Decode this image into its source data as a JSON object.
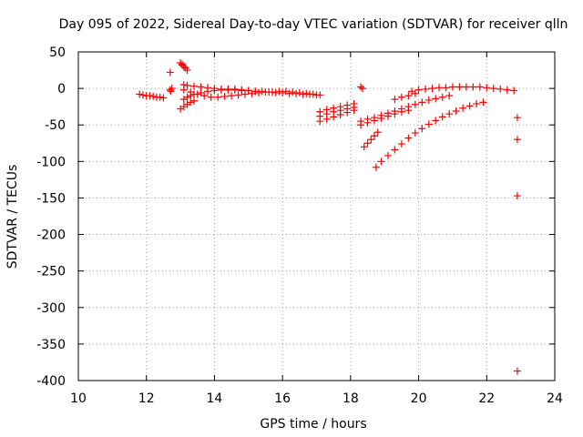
{
  "chart_data": {
    "type": "scatter",
    "title": "Day 095 of 2022, Sidereal Day-to-day VTEC variation (SDTVAR) for receiver qlln",
    "xlabel": "GPS time / hours",
    "ylabel": "SDTVAR / TECUs",
    "xlim": [
      10,
      24
    ],
    "ylim": [
      -400,
      50
    ],
    "xticks": [
      10,
      12,
      14,
      16,
      18,
      20,
      22,
      24
    ],
    "yticks": [
      50,
      0,
      -50,
      -100,
      -150,
      -200,
      -250,
      -300,
      -350,
      -400
    ],
    "grid": true,
    "marker": "plus",
    "color": "#ff0000",
    "series": [
      {
        "x": [
          11.8,
          11.9,
          12.0,
          12.1,
          12.2,
          12.3,
          12.4,
          12.5,
          12.7,
          12.75,
          12.7,
          12.72,
          13.0,
          13.05,
          13.1,
          13.15,
          13.2,
          13.05,
          13.1,
          13.0,
          13.1,
          13.2,
          13.3,
          13.4,
          13.1,
          13.2,
          13.4,
          13.6,
          13.8,
          14.0,
          14.2,
          14.4,
          14.6,
          14.8,
          15.0,
          15.2,
          15.4,
          15.6,
          15.8,
          16.0,
          16.2,
          16.4,
          16.6,
          16.8,
          17.0,
          13.1,
          13.3,
          13.5,
          13.7,
          13.9,
          14.1,
          14.3,
          14.5,
          14.7,
          14.9,
          15.1,
          15.3,
          15.5,
          15.7,
          15.9,
          16.1,
          16.3,
          16.5,
          16.7,
          16.9,
          17.1,
          13.1,
          13.2,
          13.3,
          13.4,
          13.6,
          13.8,
          14.0,
          14.2,
          14.4,
          14.6,
          14.8,
          15.0,
          15.2,
          17.1,
          17.3,
          17.5,
          17.7,
          17.9,
          18.1,
          17.1,
          17.3,
          17.5,
          17.7,
          17.9,
          18.1,
          17.1,
          17.3,
          17.5,
          17.7,
          17.9,
          18.1,
          18.3,
          18.35,
          18.3,
          18.5,
          18.7,
          18.9,
          19.1,
          19.3,
          19.5,
          19.7,
          19.9,
          20.1,
          20.3,
          20.5,
          20.7,
          20.9,
          18.3,
          18.5,
          18.7,
          18.9,
          19.1,
          19.3,
          19.5,
          19.7,
          18.4,
          18.5,
          18.6,
          18.7,
          18.8,
          19.3,
          19.5,
          19.7,
          19.9,
          19.8,
          20.0,
          20.2,
          20.4,
          20.6,
          20.8,
          21.0,
          21.2,
          21.4,
          21.6,
          21.8,
          22.0,
          22.2,
          22.4,
          22.6,
          22.8,
          18.75,
          18.9,
          19.1,
          19.3,
          19.5,
          19.7,
          19.9,
          20.1,
          20.3,
          20.5,
          20.7,
          20.9,
          21.1,
          21.3,
          21.5,
          21.7,
          21.9,
          22.9,
          22.9,
          22.9,
          22.9
        ],
        "y": [
          -8,
          -9,
          -10,
          -10,
          -11,
          -12,
          -12,
          -13,
          22,
          0,
          -2,
          -4,
          35,
          33,
          30,
          28,
          25,
          32,
          30,
          -28,
          -25,
          -22,
          -19,
          -17,
          5,
          4,
          3,
          2,
          1,
          0,
          -1,
          -2,
          -2,
          -3,
          -3,
          -4,
          -4,
          -5,
          -6,
          -6,
          -7,
          -7,
          -8,
          -8,
          -9,
          -2,
          -5,
          -8,
          -10,
          -12,
          -12,
          -11,
          -10,
          -9,
          -8,
          -7,
          -6,
          -5,
          -5,
          -4,
          -4,
          -5,
          -6,
          -7,
          -8,
          -9,
          -15,
          -12,
          -10,
          -8,
          -6,
          -4,
          -3,
          -2,
          -1,
          -1,
          -2,
          -3,
          -4,
          -45,
          -42,
          -39,
          -36,
          -33,
          -30,
          -38,
          -35,
          -32,
          -30,
          -28,
          -26,
          -32,
          -29,
          -27,
          -25,
          -23,
          -21,
          2,
          0,
          -45,
          -42,
          -40,
          -37,
          -34,
          -31,
          -28,
          -25,
          -22,
          -19,
          -16,
          -14,
          -12,
          -10,
          -50,
          -47,
          -44,
          -41,
          -38,
          -35,
          -32,
          -30,
          -80,
          -75,
          -70,
          -65,
          -60,
          -15,
          -12,
          -10,
          -7,
          -4,
          -2,
          -1,
          0,
          1,
          1,
          2,
          2,
          2,
          2,
          2,
          1,
          0,
          -1,
          -2,
          -3,
          -108,
          -100,
          -92,
          -84,
          -76,
          -68,
          -61,
          -55,
          -49,
          -44,
          -39,
          -35,
          -31,
          -27,
          -24,
          -21,
          -19,
          -40,
          -70,
          -147,
          -387
        ]
      }
    ]
  }
}
